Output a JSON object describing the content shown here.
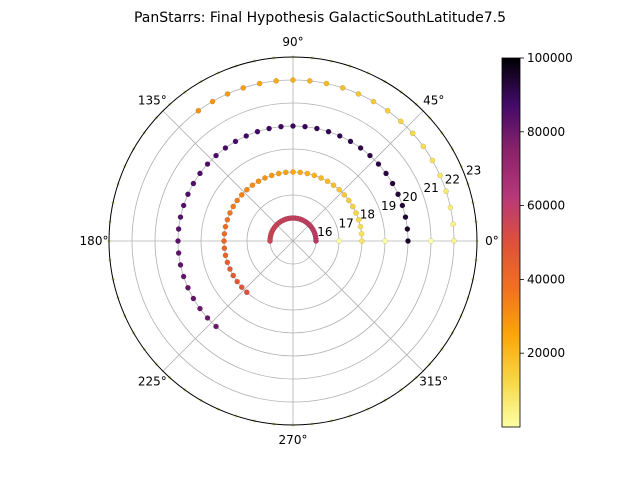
{
  "chart_data": {
    "type": "scatter",
    "projection": "polar",
    "title": "PanStarrs: Final Hypothesis GalacticSouthLatitude7.5",
    "theta_ticks": [
      {
        "deg": 0,
        "label": "0°"
      },
      {
        "deg": 45,
        "label": "45°"
      },
      {
        "deg": 90,
        "label": "90°"
      },
      {
        "deg": 135,
        "label": "135°"
      },
      {
        "deg": 180,
        "label": "180°"
      },
      {
        "deg": 225,
        "label": "225°"
      },
      {
        "deg": 270,
        "label": "270°"
      },
      {
        "deg": 315,
        "label": "315°"
      }
    ],
    "r_ticks": [
      16,
      17,
      18,
      19,
      20,
      21,
      22,
      23
    ],
    "r_tick_labels": [
      "16",
      "17",
      "18",
      "19",
      "20",
      "21",
      "22",
      "23"
    ],
    "rlim": [
      15,
      23
    ],
    "grid": true,
    "colormap": "inferno_r",
    "colorbar": {
      "min": 0,
      "max": 100000,
      "ticks": [
        20000,
        40000,
        60000,
        80000,
        100000
      ],
      "tick_labels": [
        "20000",
        "40000",
        "60000",
        "80000",
        "100000"
      ],
      "placement": "right"
    },
    "rings": [
      {
        "r": 16,
        "theta_max": 180,
        "step": 6,
        "v_start": 60000,
        "v_end": 55000
      },
      {
        "r": 17,
        "theta_max": 0,
        "step": 6,
        "v_start": 0,
        "v_end": 0
      },
      {
        "r": 18,
        "theta_max": 230,
        "step": 6,
        "v_start": 8000,
        "v_end": 50000
      },
      {
        "r": 19,
        "theta_max": 0,
        "step": 6,
        "v_start": 0,
        "v_end": 0
      },
      {
        "r": 20,
        "theta_max": 230,
        "step": 6,
        "v_start": 95000,
        "v_end": 80000
      },
      {
        "r": 21,
        "theta_max": 0,
        "step": 6,
        "v_start": 0,
        "v_end": 0
      },
      {
        "r": 22,
        "theta_max": 130,
        "step": 6,
        "v_start": 3000,
        "v_end": 30000
      },
      {
        "r": 23,
        "theta_max": 360,
        "step": 6,
        "v_start": 800,
        "v_end": 800
      }
    ]
  }
}
